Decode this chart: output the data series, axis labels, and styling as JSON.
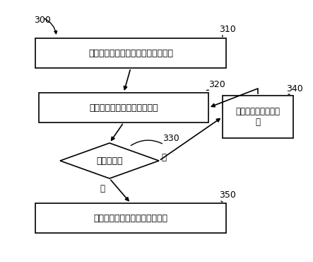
{
  "bg_color": "#ffffff",
  "line_color": "#000000",
  "box_fill": "#ffffff",
  "text_color": "#000000",
  "label_300": "300",
  "label_310": "310",
  "label_320": "320",
  "label_330": "330",
  "label_340": "340",
  "label_350": "350",
  "text_box1": "从多个启动文件中选择一个启动文件",
  "text_box2": "对所选择的启动文件进行验证",
  "text_diamond": "验证通过？",
  "text_box3": "重新选择另一启动文\n件",
  "text_box4": "利用所选择的启动文件进行启动",
  "yes_label": "是",
  "no_label": "否"
}
